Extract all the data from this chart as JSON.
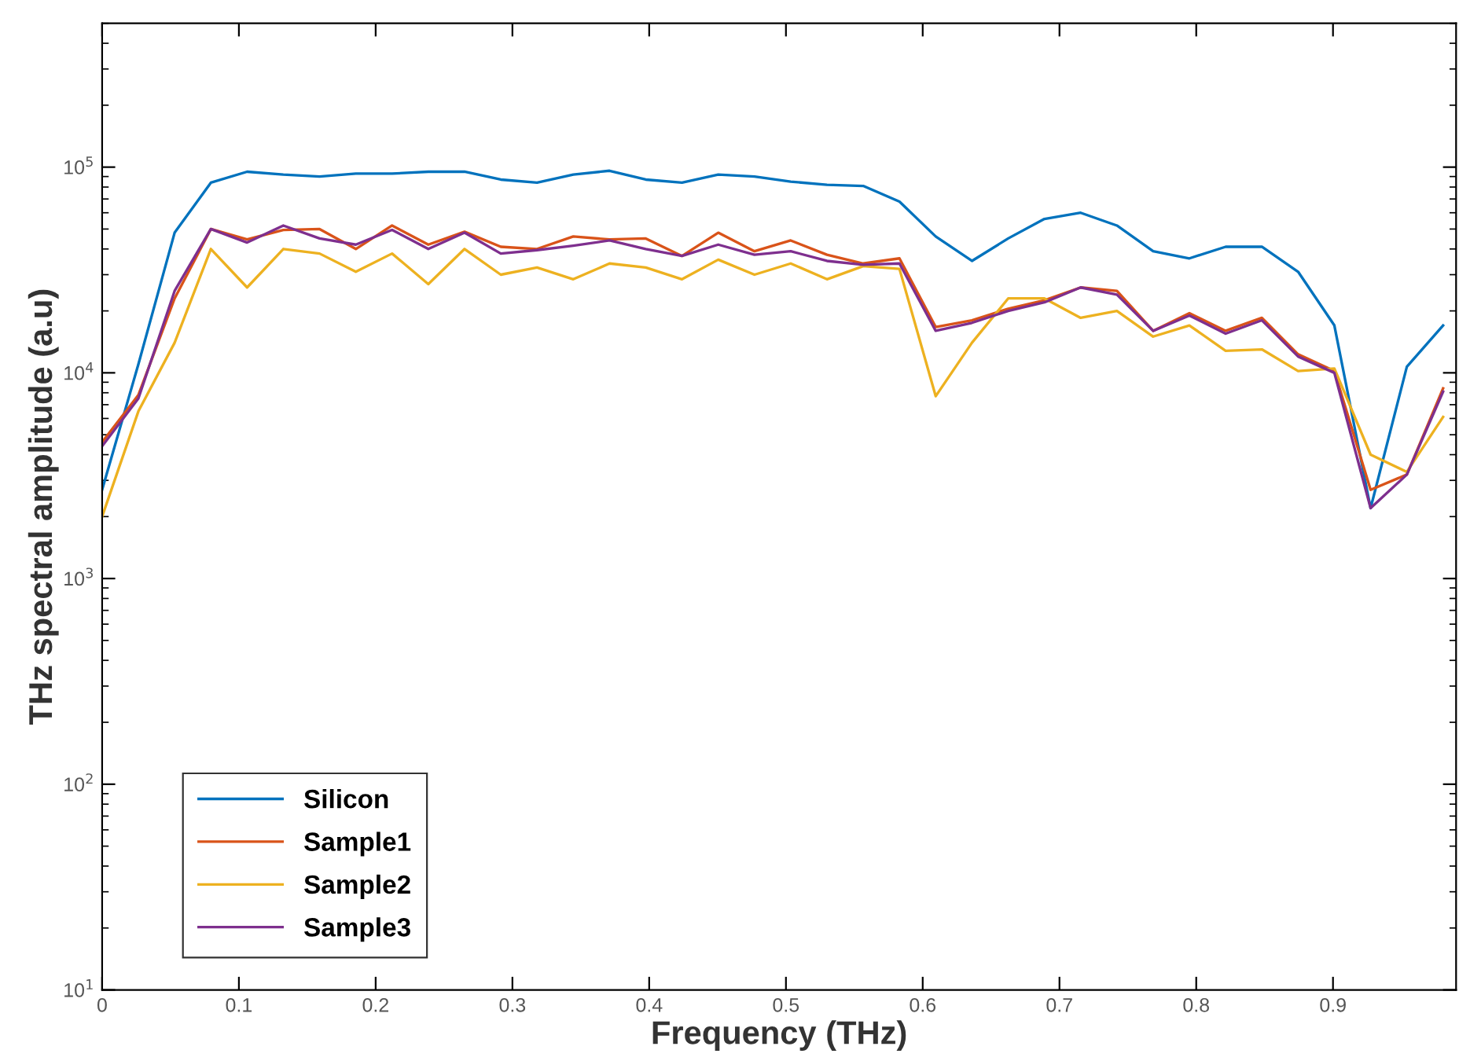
{
  "chart_data": {
    "type": "line",
    "xlabel": "Frequency (THz)",
    "ylabel": "THz spectral amplitude (a.u)",
    "x": [
      0,
      0.0265,
      0.053,
      0.0795,
      0.106,
      0.1325,
      0.159,
      0.1855,
      0.212,
      0.2385,
      0.265,
      0.2915,
      0.318,
      0.3445,
      0.371,
      0.3975,
      0.424,
      0.4505,
      0.477,
      0.5035,
      0.53,
      0.5565,
      0.583,
      0.6095,
      0.636,
      0.6625,
      0.689,
      0.7155,
      0.742,
      0.7685,
      0.795,
      0.8215,
      0.848,
      0.8745,
      0.901,
      0.9275,
      0.954,
      0.9805
    ],
    "series": [
      {
        "name": "Silicon",
        "color": "#0072bd",
        "values": [
          2700,
          11000,
          48000,
          84000,
          95000,
          92000,
          90000,
          93000,
          93000,
          95000,
          95000,
          87000,
          84000,
          92000,
          96000,
          87000,
          84000,
          92000,
          90000,
          85000,
          82000,
          81000,
          68000,
          46000,
          35000,
          45000,
          56000,
          60000,
          52000,
          39000,
          36000,
          41000,
          41000,
          31000,
          17000,
          2200,
          10700,
          17000
        ]
      },
      {
        "name": "Sample1",
        "color": "#d95319",
        "values": [
          4600,
          7800,
          23000,
          50000,
          44500,
          49500,
          50000,
          40000,
          52000,
          42000,
          48500,
          41000,
          40000,
          46000,
          44500,
          45000,
          37000,
          48000,
          39000,
          44000,
          37500,
          34000,
          36000,
          16700,
          18000,
          20500,
          22500,
          26000,
          25000,
          16000,
          19500,
          16000,
          18500,
          12300,
          10200,
          2700,
          3200,
          8400
        ]
      },
      {
        "name": "Sample2",
        "color": "#edb120",
        "values": [
          2000,
          6500,
          14000,
          40000,
          26000,
          40000,
          38000,
          31000,
          38000,
          27000,
          40000,
          30000,
          32500,
          28500,
          34000,
          32500,
          28500,
          35500,
          30000,
          34000,
          28500,
          33000,
          32000,
          7700,
          14000,
          23000,
          23000,
          18500,
          20000,
          15000,
          17000,
          12800,
          13000,
          10200,
          10500,
          4000,
          3300,
          6100
        ]
      },
      {
        "name": "Sample3",
        "color": "#7e2f8e",
        "values": [
          4400,
          7500,
          25000,
          50000,
          43000,
          52000,
          45000,
          42000,
          49500,
          40000,
          48000,
          38000,
          39500,
          41500,
          44000,
          40000,
          37000,
          42000,
          37500,
          39000,
          35000,
          33500,
          34000,
          16000,
          17500,
          20000,
          22000,
          26000,
          24000,
          16000,
          19000,
          15500,
          18000,
          12000,
          10000,
          2200,
          3200,
          8100
        ]
      }
    ],
    "xlim": [
      0,
      0.99
    ],
    "xticks": [
      0,
      0.1,
      0.2,
      0.3,
      0.4,
      0.5,
      0.6,
      0.7,
      0.8,
      0.9
    ],
    "log": true,
    "ylim": [
      10,
      500000
    ],
    "yticks": [
      {
        "value": 10,
        "label": "10$^{1}$"
      },
      {
        "value": 100,
        "label": "10$^{2}$"
      },
      {
        "value": 1000,
        "label": "10$^{3}$"
      },
      {
        "value": 10000,
        "label": "10$^{4}$"
      },
      {
        "value": 100000,
        "label": "10$^{5}$"
      }
    ],
    "grid": false,
    "legend": "bottom left",
    "line_style": "solid",
    "marker": "none"
  }
}
